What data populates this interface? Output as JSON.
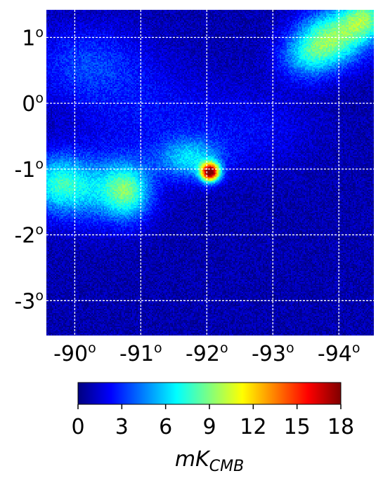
{
  "chart_data": {
    "type": "heatmap",
    "x_ticks": [
      {
        "value": -90,
        "base": "-90",
        "sup": "o"
      },
      {
        "value": -91,
        "base": "-91",
        "sup": "o"
      },
      {
        "value": -92,
        "base": "-92",
        "sup": "o"
      },
      {
        "value": -93,
        "base": "-93",
        "sup": "o"
      },
      {
        "value": -94,
        "base": "-94",
        "sup": "o"
      }
    ],
    "y_ticks": [
      {
        "value": 1,
        "base": "1",
        "sup": "o"
      },
      {
        "value": 0,
        "base": "0",
        "sup": "o"
      },
      {
        "value": -1,
        "base": "-1",
        "sup": "o"
      },
      {
        "value": -2,
        "base": "-2",
        "sup": "o"
      },
      {
        "value": -3,
        "base": "-3",
        "sup": "o"
      }
    ],
    "xlim": [
      -89.57,
      -94.53
    ],
    "ylim": [
      -3.53,
      1.42
    ],
    "grid": true,
    "colormap": "jet",
    "colorbar": {
      "range": [
        0,
        18
      ],
      "ticks": [
        "0",
        "3",
        "6",
        "9",
        "12",
        "15",
        "18"
      ],
      "label_main": "mK",
      "label_sub": "CMB"
    },
    "background_level": 0.8,
    "sources": [
      {
        "x": -92.05,
        "y": -1.05,
        "peak": 16.5,
        "sigma_x": 0.1,
        "sigma_y": 0.1
      },
      {
        "x": -91.75,
        "y": -0.85,
        "peak": 5.0,
        "sigma_x": 0.35,
        "sigma_y": 0.22
      },
      {
        "x": -90.8,
        "y": -1.35,
        "peak": 6.0,
        "sigma_x": 0.25,
        "sigma_y": 0.3
      },
      {
        "x": -90.2,
        "y": -1.3,
        "peak": 4.5,
        "sigma_x": 0.5,
        "sigma_y": 0.35
      },
      {
        "x": -89.7,
        "y": -1.2,
        "peak": 4.0,
        "sigma_x": 0.3,
        "sigma_y": 0.3
      },
      {
        "x": -93.9,
        "y": 1.0,
        "peak": 7.5,
        "sigma_x": 0.35,
        "sigma_y": 0.3
      },
      {
        "x": -94.4,
        "y": 1.3,
        "peak": 7.0,
        "sigma_x": 0.25,
        "sigma_y": 0.25
      },
      {
        "x": -93.5,
        "y": 0.7,
        "peak": 4.0,
        "sigma_x": 0.3,
        "sigma_y": 0.25
      },
      {
        "x": -90.2,
        "y": 0.6,
        "peak": 2.5,
        "sigma_x": 0.6,
        "sigma_y": 0.4
      },
      {
        "x": -91.2,
        "y": -0.2,
        "peak": 1.5,
        "sigma_x": 0.8,
        "sigma_y": 0.5
      },
      {
        "x": -92.8,
        "y": -0.4,
        "peak": 1.2,
        "sigma_x": 0.6,
        "sigma_y": 0.4
      }
    ]
  }
}
